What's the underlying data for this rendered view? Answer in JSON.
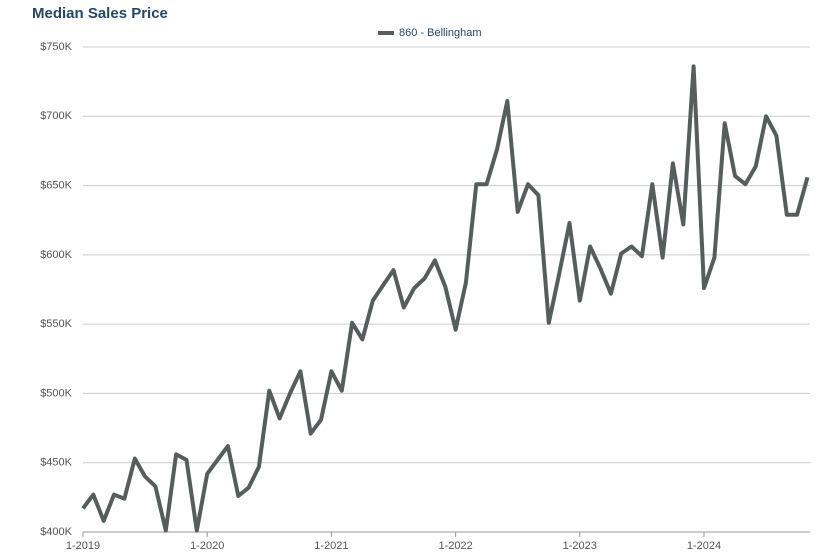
{
  "chart_data": {
    "type": "line",
    "title": "Median Sales Price",
    "categories": [
      "1-2019",
      null,
      null,
      null,
      null,
      null,
      null,
      null,
      null,
      null,
      null,
      null,
      "1-2020",
      null,
      null,
      null,
      null,
      null,
      null,
      null,
      null,
      null,
      null,
      null,
      "1-2021",
      null,
      null,
      null,
      null,
      null,
      null,
      null,
      null,
      null,
      null,
      null,
      "1-2022",
      null,
      null,
      null,
      null,
      null,
      null,
      null,
      null,
      null,
      null,
      null,
      "1-2023",
      null,
      null,
      null,
      null,
      null,
      null,
      null,
      null,
      null,
      null,
      null,
      "1-2024",
      null,
      null,
      null,
      null,
      null,
      null,
      null,
      null,
      null,
      null
    ],
    "series": [
      {
        "name": "860 - Bellingham",
        "color": "#555e5c",
        "values": [
          417,
          427,
          408,
          427,
          424,
          453,
          440,
          433,
          401,
          456,
          452,
          401,
          442,
          452,
          462,
          426,
          432,
          447,
          502,
          482,
          500,
          516,
          471,
          481,
          516,
          502,
          551,
          539,
          567,
          578,
          589,
          562,
          576,
          583,
          596,
          577,
          546,
          580,
          651,
          651,
          676,
          711,
          631,
          651,
          643,
          551,
          586,
          623,
          567,
          606,
          590,
          572,
          601,
          606,
          599,
          651,
          598,
          666,
          622,
          736,
          576,
          598,
          695,
          657,
          651,
          664,
          700,
          686,
          629,
          629,
          656
        ]
      }
    ],
    "ylim": [
      400,
      750
    ],
    "yticks": [
      {
        "value": 400,
        "label": "$400K"
      },
      {
        "value": 450,
        "label": "$450K"
      },
      {
        "value": 500,
        "label": "$500K"
      },
      {
        "value": 550,
        "label": "$550K"
      },
      {
        "value": 600,
        "label": "$600K"
      },
      {
        "value": 650,
        "label": "$650K"
      },
      {
        "value": 700,
        "label": "$700K"
      },
      {
        "value": 750,
        "label": "$750K"
      }
    ],
    "grid": true,
    "legend": "top"
  }
}
